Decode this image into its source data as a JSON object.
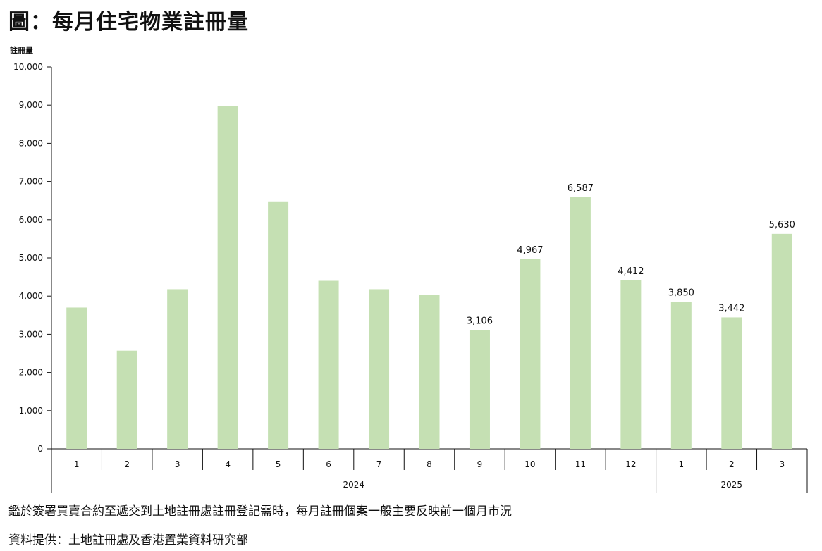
{
  "title": "圖：每月住宅物業註冊量",
  "chart_data": {
    "type": "bar",
    "ylabel": "註冊量",
    "ylim": [
      0,
      10000
    ],
    "yticks": [
      "0",
      "1,000",
      "2,000",
      "3,000",
      "4,000",
      "5,000",
      "6,000",
      "7,000",
      "8,000",
      "9,000",
      "10,000"
    ],
    "categories": [
      "1",
      "2",
      "3",
      "4",
      "5",
      "6",
      "7",
      "8",
      "9",
      "10",
      "11",
      "12",
      "1",
      "2",
      "3"
    ],
    "values": [
      3700,
      2570,
      4180,
      8970,
      6480,
      4400,
      4180,
      4030,
      3106,
      4967,
      6587,
      4412,
      3850,
      3442,
      5630
    ],
    "data_labels": [
      "",
      "",
      "",
      "",
      "",
      "",
      "",
      "",
      "3,106",
      "4,967",
      "6,587",
      "4,412",
      "3,850",
      "3,442",
      "5,630"
    ],
    "year_groups": [
      {
        "label": "2024",
        "count": 12
      },
      {
        "label": "2025",
        "count": 3
      }
    ],
    "bar_color": "#c5e0b3",
    "grid": false,
    "legend": "none"
  },
  "notes": {
    "line1": "鑑於簽署買賣合約至遞交到土地註冊處註冊登記需時，每月註冊個案一般主要反映前一個月市況",
    "line2": "資料提供：土地註冊處及香港置業資料研究部"
  }
}
